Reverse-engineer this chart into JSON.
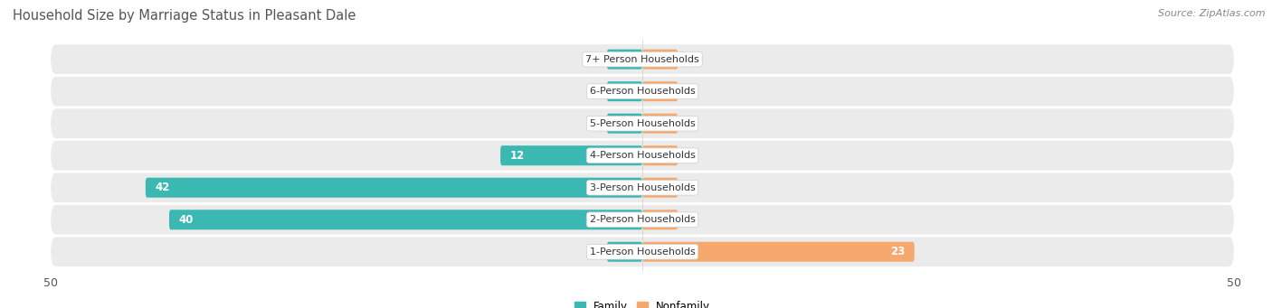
{
  "title": "Household Size by Marriage Status in Pleasant Dale",
  "source": "Source: ZipAtlas.com",
  "categories": [
    "7+ Person Households",
    "6-Person Households",
    "5-Person Households",
    "4-Person Households",
    "3-Person Households",
    "2-Person Households",
    "1-Person Households"
  ],
  "family": [
    0,
    0,
    2,
    12,
    42,
    40,
    0
  ],
  "nonfamily": [
    0,
    1,
    0,
    0,
    0,
    0,
    23
  ],
  "family_color": "#3cb8b2",
  "nonfamily_color": "#f5a96e",
  "row_bg_color": "#ebebeb",
  "row_bg_light": "#f5f5f5",
  "xlim": 50,
  "min_bar": 3,
  "bar_height": 0.62,
  "legend_family": "Family",
  "legend_nonfamily": "Nonfamily",
  "title_fontsize": 10.5,
  "source_fontsize": 8,
  "tick_fontsize": 9,
  "cat_fontsize": 8,
  "value_fontsize": 8.5
}
